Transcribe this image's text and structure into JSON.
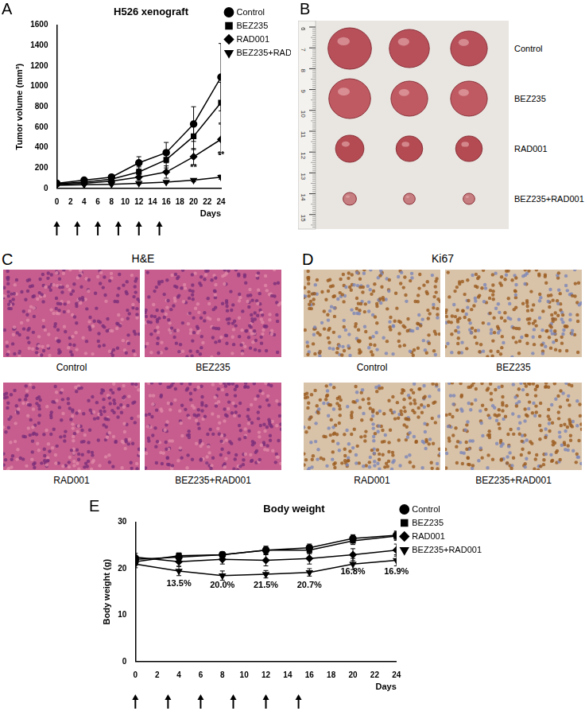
{
  "chart_data": [
    {
      "panel_label": "A",
      "type": "line",
      "title": "H526 xenograft",
      "x_label": "Days",
      "y_label": "Tumor volume (mm³)",
      "x": [
        0,
        4,
        8,
        12,
        16,
        20,
        24
      ],
      "xlim": [
        0,
        24
      ],
      "xticks": [
        0,
        2,
        4,
        6,
        8,
        10,
        12,
        14,
        16,
        18,
        20,
        22,
        24
      ],
      "ylim": [
        0,
        1600
      ],
      "yticks": [
        0,
        200,
        400,
        600,
        800,
        1000,
        1200,
        1400,
        1600
      ],
      "grid": false,
      "legend": "top-right",
      "series": [
        {
          "name": "Control",
          "color": "#000000",
          "marker": "circle",
          "values": [
            50,
            80,
            110,
            250,
            350,
            630,
            1090
          ],
          "errors": [
            10,
            12,
            20,
            60,
            100,
            170,
            330
          ]
        },
        {
          "name": "BEZ235",
          "color": "#000000",
          "marker": "square",
          "values": [
            45,
            60,
            90,
            160,
            280,
            510,
            840
          ],
          "errors": [
            10,
            10,
            20,
            50,
            80,
            130,
            200
          ]
        },
        {
          "name": "RAD001",
          "color": "#000000",
          "marker": "diamond",
          "values": [
            40,
            50,
            70,
            110,
            160,
            310,
            480
          ],
          "errors": [
            5,
            10,
            15,
            30,
            60,
            80,
            150
          ]
        },
        {
          "name": "BEZ235+RAD001",
          "color": "#000000",
          "marker": "triangle-down",
          "values": [
            30,
            35,
            40,
            50,
            60,
            80,
            110
          ],
          "errors": [
            5,
            5,
            8,
            10,
            10,
            15,
            20
          ]
        }
      ],
      "annotations": [
        {
          "x": 20,
          "y": 200,
          "text": "**"
        },
        {
          "x": 24,
          "y": 330,
          "text": "**"
        }
      ],
      "dosing_days": [
        0,
        3,
        6,
        9,
        12,
        15
      ]
    },
    {
      "panel_label": "E",
      "type": "line",
      "title": "Body weight",
      "x_label": "Days",
      "y_label": "Body weight (g)",
      "x": [
        0,
        4,
        8,
        12,
        16,
        20,
        24
      ],
      "xlim": [
        0,
        24
      ],
      "xticks": [
        0,
        2,
        4,
        6,
        8,
        10,
        12,
        14,
        16,
        18,
        20,
        22,
        24
      ],
      "ylim": [
        0,
        30
      ],
      "yticks": [
        0,
        10,
        20,
        30
      ],
      "grid": false,
      "legend": "top-right",
      "series": [
        {
          "name": "Control",
          "color": "#000000",
          "marker": "circle",
          "values": [
            22,
            22.5,
            23,
            24,
            24.5,
            26.5,
            27.2
          ],
          "errors": [
            0.8,
            0.6,
            0.6,
            0.8,
            0.8,
            0.8,
            0.9
          ]
        },
        {
          "name": "BEZ235",
          "color": "#000000",
          "marker": "square",
          "values": [
            21.5,
            22.8,
            23,
            24,
            24,
            26,
            27
          ],
          "errors": [
            0.8,
            0.6,
            0.6,
            0.8,
            0.8,
            0.8,
            0.9
          ]
        },
        {
          "name": "RAD001",
          "color": "#000000",
          "marker": "diamond",
          "values": [
            22.5,
            21.5,
            22,
            21.8,
            22.2,
            23,
            24
          ],
          "errors": [
            0.8,
            1,
            1,
            1.2,
            1.2,
            1.3,
            1.3
          ]
        },
        {
          "name": "BEZ235+RAD001",
          "color": "#000000",
          "marker": "triangle-down",
          "values": [
            21,
            19.5,
            18.5,
            18.8,
            19.2,
            21,
            21.8
          ],
          "errors": [
            0.8,
            1,
            1,
            0.8,
            0.8,
            1.2,
            1.2
          ]
        }
      ],
      "annotations": [
        {
          "x": 4,
          "y": 16.8,
          "text": "13.5%"
        },
        {
          "x": 8,
          "y": 16.4,
          "text": "20.0%"
        },
        {
          "x": 12,
          "y": 16.4,
          "text": "21.5%"
        },
        {
          "x": 16,
          "y": 16.4,
          "text": "20.7%"
        },
        {
          "x": 20,
          "y": 19.3,
          "text": "16.8%"
        },
        {
          "x": 24,
          "y": 19.3,
          "text": "16.9%"
        }
      ],
      "dosing_days": [
        0,
        3,
        6,
        9,
        12,
        15
      ]
    }
  ],
  "panels": {
    "B": {
      "panel_label": "B",
      "ruler_ticks": [
        6,
        7,
        8,
        9,
        10,
        11,
        12,
        13,
        14,
        15
      ],
      "rows": [
        "Control",
        "BEZ235",
        "RAD001",
        "BEZ235+RAD001"
      ]
    },
    "C": {
      "panel_label": "C",
      "title": "H&E",
      "images": [
        "Control",
        "BEZ235",
        "RAD001",
        "BEZ235+RAD001"
      ]
    },
    "D": {
      "panel_label": "D",
      "title": "Ki67",
      "images": [
        "Control",
        "BEZ235",
        "RAD001",
        "BEZ235+RAD001"
      ]
    }
  }
}
